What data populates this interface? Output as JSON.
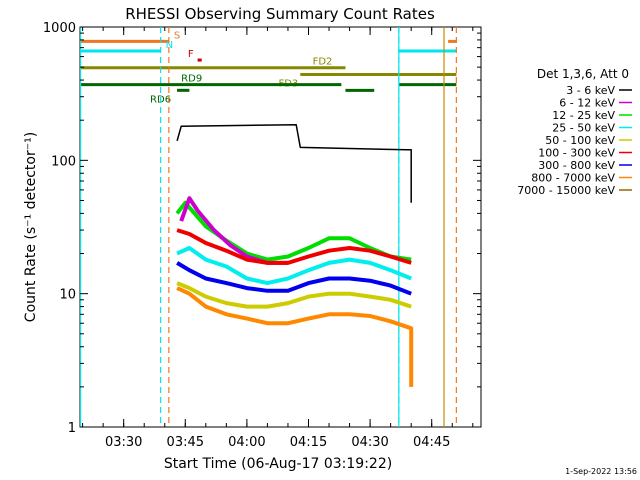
{
  "chart_data": {
    "type": "line",
    "title": "RHESSI Observing Summary Count Rates",
    "xlabel": "Start Time (06-Aug-17 03:19:22)",
    "ylabel": "Count Rate (s⁻¹ detector⁻¹)",
    "ylog": true,
    "xlim": [
      "03:19:22",
      "04:57:00"
    ],
    "ylim": [
      1,
      1000
    ],
    "x_ticks": [
      "03:30",
      "03:45",
      "04:00",
      "04:15",
      "04:30",
      "04:45"
    ],
    "y_ticks": [
      "1",
      "10",
      "100",
      "1000"
    ],
    "legend_title": "Det 1,3,6, Att 0",
    "legend_placement": "right",
    "series": [
      {
        "name": "3 - 6 keV",
        "color": "#000000",
        "points": [
          [
            "03:43",
            140
          ],
          [
            "03:44",
            180
          ],
          [
            "04:12",
            185
          ],
          [
            "04:13",
            125
          ],
          [
            "04:39",
            120
          ],
          [
            "04:40",
            120
          ],
          [
            "04:40",
            48
          ]
        ]
      },
      {
        "name": "6 - 12 keV",
        "color": "#cc00cc",
        "points": [
          [
            "03:44",
            35
          ],
          [
            "03:46",
            52
          ],
          [
            "03:48",
            42
          ],
          [
            "03:52",
            30
          ],
          [
            "03:56",
            23
          ],
          [
            "04:00",
            19
          ],
          [
            "04:05",
            17
          ],
          [
            "04:10",
            17
          ]
        ]
      },
      {
        "name": "12 - 25 keV",
        "color": "#00dd00",
        "points": [
          [
            "03:43",
            40
          ],
          [
            "03:45",
            48
          ],
          [
            "03:50",
            32
          ],
          [
            "03:55",
            25
          ],
          [
            "04:00",
            20
          ],
          [
            "04:05",
            18
          ],
          [
            "04:10",
            19
          ],
          [
            "04:15",
            22
          ],
          [
            "04:20",
            26
          ],
          [
            "04:25",
            26
          ],
          [
            "04:30",
            22
          ],
          [
            "04:35",
            19
          ],
          [
            "04:40",
            18
          ]
        ]
      },
      {
        "name": "25 - 50 keV",
        "color": "#00eeee",
        "points": [
          [
            "03:43",
            20
          ],
          [
            "03:46",
            22
          ],
          [
            "03:50",
            18
          ],
          [
            "03:55",
            16
          ],
          [
            "04:00",
            13
          ],
          [
            "04:05",
            12
          ],
          [
            "04:10",
            13
          ],
          [
            "04:15",
            15
          ],
          [
            "04:20",
            17
          ],
          [
            "04:25",
            18
          ],
          [
            "04:30",
            17
          ],
          [
            "04:35",
            15
          ],
          [
            "04:40",
            13
          ]
        ]
      },
      {
        "name": "50 - 100 keV",
        "color": "#cccc00",
        "points": [
          [
            "03:43",
            12
          ],
          [
            "03:46",
            11
          ],
          [
            "03:50",
            9.5
          ],
          [
            "03:55",
            8.5
          ],
          [
            "04:00",
            8
          ],
          [
            "04:05",
            8
          ],
          [
            "04:10",
            8.5
          ],
          [
            "04:15",
            9.5
          ],
          [
            "04:20",
            10
          ],
          [
            "04:25",
            10
          ],
          [
            "04:30",
            9.5
          ],
          [
            "04:35",
            9
          ],
          [
            "04:40",
            8
          ]
        ]
      },
      {
        "name": "100 - 300 keV",
        "color": "#ee0000",
        "points": [
          [
            "03:43",
            30
          ],
          [
            "03:46",
            28
          ],
          [
            "03:50",
            24
          ],
          [
            "03:55",
            21
          ],
          [
            "04:00",
            18
          ],
          [
            "04:05",
            17
          ],
          [
            "04:10",
            17
          ],
          [
            "04:15",
            19
          ],
          [
            "04:20",
            21
          ],
          [
            "04:25",
            22
          ],
          [
            "04:30",
            21
          ],
          [
            "04:35",
            19
          ],
          [
            "04:40",
            17
          ]
        ]
      },
      {
        "name": "300 - 800 keV",
        "color": "#0000ee",
        "points": [
          [
            "03:43",
            17
          ],
          [
            "03:46",
            15
          ],
          [
            "03:50",
            13
          ],
          [
            "03:55",
            12
          ],
          [
            "04:00",
            11
          ],
          [
            "04:05",
            10.5
          ],
          [
            "04:10",
            10.5
          ],
          [
            "04:15",
            12
          ],
          [
            "04:20",
            13
          ],
          [
            "04:25",
            13
          ],
          [
            "04:30",
            12.5
          ],
          [
            "04:35",
            11.5
          ],
          [
            "04:40",
            10
          ]
        ]
      },
      {
        "name": "800 - 7000 keV",
        "color": "#ff8800",
        "points": [
          [
            "03:43",
            11
          ],
          [
            "03:46",
            10
          ],
          [
            "03:50",
            8
          ],
          [
            "03:55",
            7
          ],
          [
            "04:00",
            6.5
          ],
          [
            "04:05",
            6
          ],
          [
            "04:10",
            6
          ],
          [
            "04:15",
            6.5
          ],
          [
            "04:20",
            7
          ],
          [
            "04:25",
            7
          ],
          [
            "04:30",
            6.8
          ],
          [
            "04:35",
            6.2
          ],
          [
            "04:40",
            5.5
          ],
          [
            "04:40",
            2
          ]
        ]
      },
      {
        "name": "7000 - 15000 keV",
        "color": "#996600",
        "points": []
      }
    ],
    "flag_bars": [
      {
        "label": "S",
        "color": "#ee7722",
        "level": 780,
        "segments": [
          [
            "03:19:22",
            "03:41"
          ],
          [
            "04:49",
            "04:51"
          ]
        ]
      },
      {
        "label": "N",
        "color": "#00e5ee",
        "level": 660,
        "segments": [
          [
            "03:19:22",
            "03:39"
          ],
          [
            "04:37",
            "04:51"
          ]
        ]
      },
      {
        "label": "F",
        "color": "#cc0000",
        "level": 565,
        "segments": [
          [
            "03:48",
            "03:49"
          ]
        ]
      },
      {
        "label": "FD2",
        "color": "#888800",
        "level": 495,
        "segments": [
          [
            "03:19:22",
            "04:24"
          ]
        ]
      },
      {
        "label": "FD3",
        "color": "#888800",
        "level": 440,
        "segments": [
          [
            "04:13",
            "04:51"
          ]
        ]
      },
      {
        "label": "RD9",
        "color": "#006600",
        "level": 370,
        "segments": [
          [
            "03:19:22",
            "04:23"
          ],
          [
            "04:37",
            "04:51"
          ]
        ]
      },
      {
        "label": "RD6",
        "color": "#006600",
        "level": 335,
        "segments": [
          [
            "03:43",
            "03:46"
          ],
          [
            "04:24",
            "04:31"
          ]
        ]
      }
    ],
    "vertical_markers": [
      {
        "time": "03:19:30",
        "color": "#00e5ee",
        "style": "solid"
      },
      {
        "time": "03:39",
        "color": "#00e5ee",
        "style": "dashed"
      },
      {
        "time": "03:41",
        "color": "#ee7722",
        "style": "dashed"
      },
      {
        "time": "04:37",
        "color": "#00e5ee",
        "style": "solid"
      },
      {
        "time": "04:37",
        "color": "#00e5ee",
        "style": "dashed"
      },
      {
        "time": "04:48",
        "color": "#cc8800",
        "style": "solid"
      },
      {
        "time": "04:51",
        "color": "#ee7722",
        "style": "dashed"
      }
    ],
    "footer_stamp": "1-Sep-2022 13:56"
  }
}
